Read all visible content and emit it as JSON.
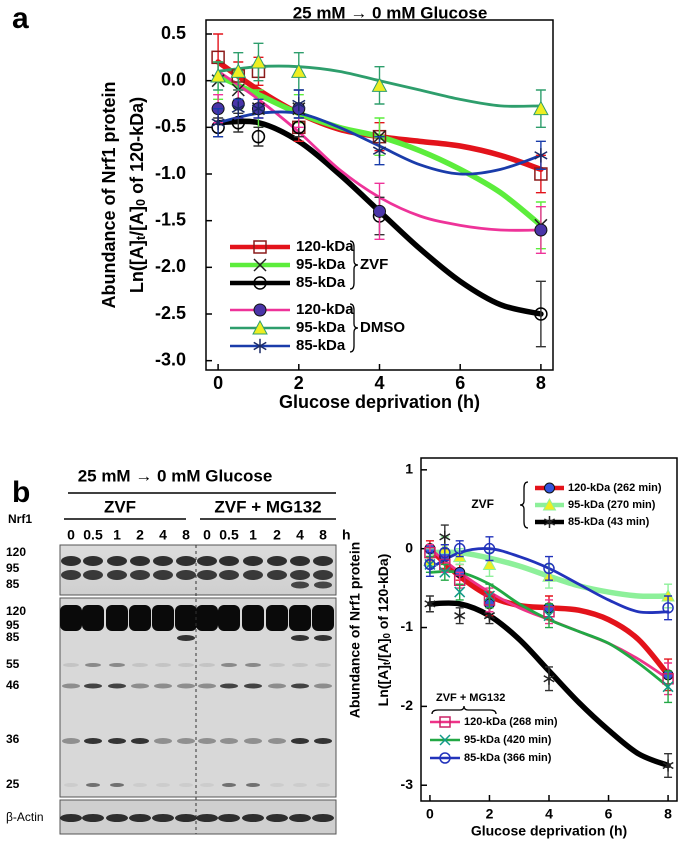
{
  "chart_data": [
    {
      "type": "line",
      "panel": "a",
      "title": "25 mM → 0 mM Glucose",
      "y_label": "Abundance of Nrf1 protein",
      "y_label_2": [
        "Ln([A]",
        "t",
        "/[A]",
        "0",
        " of 120-kDa)"
      ],
      "x_label": "Glucose deprivation (h)",
      "x": [
        0,
        0.5,
        1,
        2,
        4,
        8
      ],
      "fit_x": [
        0,
        1,
        2,
        3,
        4,
        5,
        6,
        7,
        8
      ],
      "xlim": [
        -0.3,
        8.3
      ],
      "xticks": [
        0,
        2,
        4,
        6,
        8
      ],
      "ylim": [
        -3.1,
        0.65
      ],
      "yticks": [
        0.5,
        {
          "value": 0,
          "label": "0.0"
        },
        -0.5,
        {
          "value": -1,
          "label": "-1.0"
        },
        -1.5,
        {
          "value": -2,
          "label": "-2.0"
        },
        -2.5,
        {
          "value": -3,
          "label": "-3.0"
        }
      ],
      "legend_groups": [
        "ZVF",
        "DMSO"
      ],
      "series": [
        {
          "name": "120-kDa",
          "color": "#e3131b",
          "marker": "square",
          "marker_color": "#8b1a1a",
          "values": [
            0.25,
            0.05,
            0.1,
            -0.5,
            -0.6,
            -1.0
          ],
          "errors": [
            0.25,
            0.15,
            0.15,
            0.15,
            0.15,
            0.2
          ],
          "fit": [
            0.2,
            -0.1,
            -0.35,
            -0.52,
            -0.6,
            -0.65,
            -0.7,
            -0.8,
            -0.95
          ]
        },
        {
          "name": "95-kDa",
          "color": "#5ced3c",
          "marker": "x",
          "marker_color": "#222222",
          "values": [
            0.0,
            -0.1,
            -0.3,
            -0.3,
            -0.6,
            -1.55
          ],
          "errors": [
            0.2,
            0.2,
            0.2,
            0.15,
            0.2,
            0.25
          ],
          "fit": [
            0.05,
            -0.15,
            -0.35,
            -0.5,
            -0.6,
            -0.75,
            -0.95,
            -1.2,
            -1.55
          ]
        },
        {
          "name": "85-kDa",
          "color": "#000000",
          "marker": "circle",
          "marker_color": "#000000",
          "values": [
            -0.5,
            -0.45,
            -0.6,
            -0.5,
            -1.45,
            -2.5
          ],
          "errors": [
            0.1,
            0.1,
            0.1,
            0.1,
            0.2,
            0.35
          ],
          "fit": [
            -0.45,
            -0.45,
            -0.65,
            -1.0,
            -1.4,
            -1.8,
            -2.15,
            -2.4,
            -2.5
          ]
        },
        {
          "name": "120-kDa",
          "color": "#ee3399",
          "marker": "filled-circle",
          "marker_color": "#4a35a8",
          "values": [
            -0.3,
            -0.25,
            -0.3,
            -0.3,
            -1.4,
            -1.6
          ],
          "errors": [
            0.15,
            0.15,
            0.1,
            0.2,
            0.3,
            0.25
          ],
          "fit": [
            0.1,
            -0.2,
            -0.55,
            -0.95,
            -1.25,
            -1.45,
            -1.55,
            -1.6,
            -1.6
          ]
        },
        {
          "name": "95-kDa",
          "color": "#2e9e6c",
          "marker": "triangle",
          "marker_color": "#eeee22",
          "values": [
            0.05,
            0.1,
            0.2,
            0.1,
            -0.05,
            -0.3
          ],
          "errors": [
            0.15,
            0.2,
            0.2,
            0.2,
            0.2,
            0.2
          ],
          "fit": [
            0.1,
            0.15,
            0.15,
            0.1,
            0.0,
            -0.1,
            -0.2,
            -0.27,
            -0.27
          ]
        },
        {
          "name": "85-kDa",
          "color": "#1a3caa",
          "marker": "asterisk",
          "marker_color": "#1a2a66",
          "values": [
            -0.45,
            -0.3,
            -0.3,
            -0.25,
            -0.75,
            -0.8
          ],
          "errors": [
            0.15,
            0.1,
            0.1,
            0.15,
            0.15,
            0.15
          ],
          "fit": [
            -0.45,
            -0.35,
            -0.35,
            -0.5,
            -0.7,
            -0.9,
            -1.0,
            -0.95,
            -0.8
          ]
        }
      ]
    },
    {
      "type": "line",
      "panel": "b",
      "y_label": "Abundance of Nrf1 protein",
      "y_label_2": [
        "Ln([A]",
        "t",
        "/[A]",
        "0",
        " of 120-kDa)"
      ],
      "x_label": "Glucose deprivation (h)",
      "x": [
        0,
        0.5,
        1,
        2,
        4,
        8
      ],
      "fit_x": [
        0,
        1,
        2,
        3,
        4,
        5,
        6,
        7,
        8
      ],
      "xlim": [
        -0.3,
        8.3
      ],
      "xticks": [
        0,
        2,
        4,
        6,
        8
      ],
      "ylim": [
        -3.2,
        1.15
      ],
      "yticks": [
        1,
        0,
        -1,
        -2,
        -3
      ],
      "legend_groups": [
        "ZVF",
        "ZVF + MG132"
      ],
      "series": [
        {
          "name": "120-kDa (262 min)",
          "color": "#e3131b",
          "marker": "filled-circle",
          "marker_color": "#3355dd",
          "values": [
            0.0,
            -0.1,
            -0.3,
            -0.7,
            -0.75,
            -1.6
          ],
          "errors": [
            0.1,
            0.15,
            0.1,
            0.15,
            0.15,
            0.2
          ],
          "fit": [
            0.0,
            -0.35,
            -0.6,
            -0.72,
            -0.75,
            -0.78,
            -0.9,
            -1.15,
            -1.6
          ]
        },
        {
          "name": "95-kDa (270 min)",
          "color": "#8df09a",
          "marker": "triangle",
          "marker_color": "#eeee22",
          "values": [
            -0.15,
            0.0,
            -0.1,
            -0.2,
            -0.35,
            -0.6
          ],
          "errors": [
            0.15,
            0.15,
            0.1,
            0.15,
            0.15,
            0.15
          ],
          "fit": [
            -0.05,
            -0.05,
            -0.12,
            -0.22,
            -0.35,
            -0.47,
            -0.55,
            -0.6,
            -0.6
          ]
        },
        {
          "name": "85-kDa (43 min)",
          "color": "#000000",
          "marker": "asterisk",
          "marker_color": "#222222",
          "values": [
            -0.7,
            0.15,
            -0.85,
            -0.85,
            -1.65,
            -2.75
          ],
          "errors": [
            0.1,
            0.15,
            0.1,
            0.1,
            0.15,
            0.15
          ],
          "fit": [
            -0.7,
            -0.7,
            -0.85,
            -1.15,
            -1.55,
            -1.95,
            -2.3,
            -2.6,
            -2.75
          ]
        },
        {
          "name": "120-kDa (268 min)",
          "color": "#ee3388",
          "marker": "square",
          "marker_color": "#cc2266",
          "values": [
            -0.05,
            -0.2,
            -0.4,
            -0.65,
            -0.8,
            -1.65
          ],
          "errors": [
            0.1,
            0.1,
            0.1,
            0.15,
            0.15,
            0.2
          ],
          "fit": [
            0.0,
            -0.3,
            -0.55,
            -0.75,
            -0.9,
            -1.05,
            -1.2,
            -1.4,
            -1.65
          ]
        },
        {
          "name": "95-kDa (420 min)",
          "color": "#22a844",
          "marker": "x",
          "marker_color": "#119988",
          "values": [
            -0.2,
            -0.3,
            -0.55,
            -0.6,
            -0.85,
            -1.75
          ],
          "errors": [
            0.1,
            0.1,
            0.1,
            0.15,
            0.15,
            0.2
          ],
          "fit": [
            -0.3,
            -0.3,
            -0.45,
            -0.7,
            -0.9,
            -1.05,
            -1.2,
            -1.45,
            -1.75
          ]
        },
        {
          "name": "85-kDa (366 min)",
          "color": "#2233bb",
          "marker": "circle",
          "marker_color": "#2233bb",
          "values": [
            -0.2,
            -0.05,
            0.0,
            0.0,
            -0.25,
            -0.75
          ],
          "errors": [
            0.15,
            0.1,
            0.1,
            0.15,
            0.15,
            0.15
          ],
          "fit": [
            -0.25,
            -0.05,
            0.0,
            -0.1,
            -0.25,
            -0.45,
            -0.65,
            -0.8,
            -0.8
          ]
        }
      ]
    }
  ],
  "blot": {
    "title": "25 mM → 0 mM Glucose",
    "groups": [
      "ZVF",
      "ZVF + MG132"
    ],
    "protein": "Nrf1",
    "lanes": [
      "0",
      "0.5",
      "1",
      "2",
      "4",
      "8",
      "0",
      "0.5",
      "1",
      "2",
      "4",
      "8"
    ],
    "unit": "h",
    "mw_top": [
      "120",
      "95",
      "85"
    ],
    "mw_bottom": [
      "120",
      "95",
      "85",
      "55",
      "46",
      "36",
      "25"
    ],
    "loading_control": "β-Actin"
  }
}
